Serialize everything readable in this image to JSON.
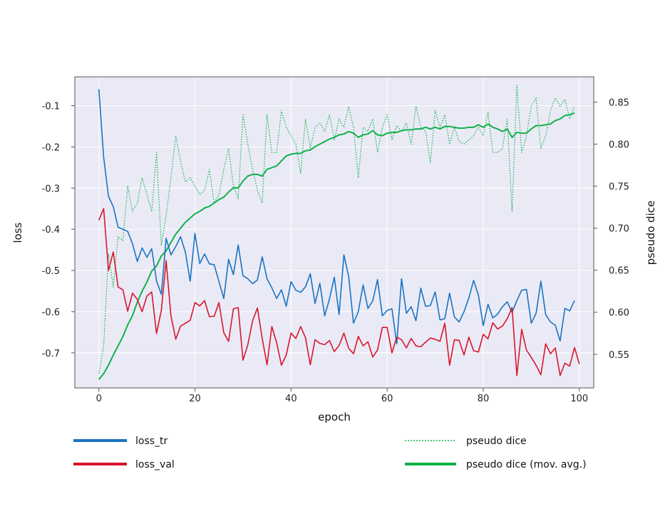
{
  "chart_data": {
    "type": "line",
    "title": "",
    "xlabel": "epoch",
    "ylabel": "loss",
    "y2label": "pseudo dice",
    "xlim": [
      -5,
      103
    ],
    "ylim": [
      -0.785,
      -0.03
    ],
    "y2lim": [
      0.51,
      0.88
    ],
    "xticks": [
      0,
      20,
      40,
      60,
      80,
      100
    ],
    "yticks": [
      -0.1,
      -0.2,
      -0.3,
      -0.4,
      -0.5,
      -0.6,
      -0.7
    ],
    "y2ticks": [
      0.55,
      0.6,
      0.65,
      0.7,
      0.75,
      0.8,
      0.85
    ],
    "grid": true,
    "legend_placement": "bottom",
    "colors": {
      "background": "#eaeaf6",
      "loss_tr": "#1a74c2",
      "loss_val": "#d8162b",
      "pseudo_dice": "#10b24a",
      "axes": "#555555",
      "grid": "#ffffff"
    },
    "series": [
      {
        "name": "loss_tr",
        "axis": "left",
        "style": "solid",
        "values": [
          -0.06,
          -0.225,
          -0.32,
          -0.345,
          -0.395,
          -0.4,
          -0.405,
          -0.435,
          -0.478,
          -0.445,
          -0.468,
          -0.447,
          -0.525,
          -0.558,
          -0.422,
          -0.462,
          -0.442,
          -0.418,
          -0.455,
          -0.526,
          -0.41,
          -0.483,
          -0.46,
          -0.484,
          -0.486,
          -0.527,
          -0.568,
          -0.473,
          -0.51,
          -0.438,
          -0.513,
          -0.52,
          -0.532,
          -0.523,
          -0.467,
          -0.52,
          -0.542,
          -0.568,
          -0.547,
          -0.587,
          -0.527,
          -0.548,
          -0.553,
          -0.54,
          -0.508,
          -0.58,
          -0.531,
          -0.61,
          -0.569,
          -0.516,
          -0.607,
          -0.462,
          -0.515,
          -0.628,
          -0.6,
          -0.535,
          -0.592,
          -0.574,
          -0.522,
          -0.61,
          -0.597,
          -0.593,
          -0.678,
          -0.52,
          -0.604,
          -0.588,
          -0.622,
          -0.543,
          -0.587,
          -0.585,
          -0.552,
          -0.62,
          -0.617,
          -0.555,
          -0.613,
          -0.625,
          -0.6,
          -0.567,
          -0.524,
          -0.56,
          -0.634,
          -0.582,
          -0.615,
          -0.606,
          -0.588,
          -0.576,
          -0.602,
          -0.573,
          -0.548,
          -0.546,
          -0.628,
          -0.604,
          -0.526,
          -0.607,
          -0.625,
          -0.633,
          -0.671,
          -0.592,
          -0.598,
          -0.573
        ]
      },
      {
        "name": "loss_val",
        "axis": "left",
        "style": "solid",
        "values": [
          -0.378,
          -0.35,
          -0.5,
          -0.455,
          -0.54,
          -0.547,
          -0.599,
          -0.555,
          -0.57,
          -0.6,
          -0.562,
          -0.552,
          -0.653,
          -0.597,
          -0.476,
          -0.61,
          -0.667,
          -0.635,
          -0.628,
          -0.621,
          -0.578,
          -0.586,
          -0.573,
          -0.612,
          -0.611,
          -0.578,
          -0.651,
          -0.672,
          -0.593,
          -0.59,
          -0.718,
          -0.68,
          -0.622,
          -0.591,
          -0.665,
          -0.729,
          -0.636,
          -0.675,
          -0.73,
          -0.705,
          -0.652,
          -0.665,
          -0.636,
          -0.663,
          -0.729,
          -0.668,
          -0.677,
          -0.68,
          -0.67,
          -0.697,
          -0.682,
          -0.652,
          -0.689,
          -0.702,
          -0.66,
          -0.683,
          -0.673,
          -0.71,
          -0.693,
          -0.638,
          -0.638,
          -0.7,
          -0.662,
          -0.668,
          -0.688,
          -0.665,
          -0.683,
          -0.685,
          -0.674,
          -0.664,
          -0.667,
          -0.672,
          -0.628,
          -0.73,
          -0.668,
          -0.67,
          -0.705,
          -0.662,
          -0.695,
          -0.698,
          -0.655,
          -0.666,
          -0.627,
          -0.642,
          -0.635,
          -0.617,
          -0.59,
          -0.755,
          -0.643,
          -0.693,
          -0.711,
          -0.73,
          -0.753,
          -0.678,
          -0.702,
          -0.688,
          -0.755,
          -0.725,
          -0.732,
          -0.687,
          -0.727
        ]
      },
      {
        "name": "pseudo dice",
        "axis": "right",
        "style": "dotted",
        "values": [
          0.527,
          0.56,
          0.67,
          0.63,
          0.69,
          0.685,
          0.75,
          0.72,
          0.73,
          0.76,
          0.74,
          0.72,
          0.79,
          0.68,
          0.715,
          0.76,
          0.81,
          0.78,
          0.755,
          0.76,
          0.75,
          0.74,
          0.745,
          0.77,
          0.73,
          0.74,
          0.77,
          0.795,
          0.75,
          0.735,
          0.835,
          0.8,
          0.77,
          0.745,
          0.73,
          0.835,
          0.79,
          0.79,
          0.84,
          0.82,
          0.81,
          0.8,
          0.765,
          0.83,
          0.795,
          0.82,
          0.825,
          0.815,
          0.835,
          0.805,
          0.83,
          0.82,
          0.845,
          0.82,
          0.76,
          0.82,
          0.815,
          0.83,
          0.79,
          0.82,
          0.835,
          0.805,
          0.822,
          0.815,
          0.825,
          0.8,
          0.845,
          0.82,
          0.815,
          0.778,
          0.84,
          0.82,
          0.835,
          0.8,
          0.82,
          0.803,
          0.8,
          0.805,
          0.81,
          0.82,
          0.81,
          0.838,
          0.79,
          0.79,
          0.795,
          0.83,
          0.72,
          0.87,
          0.79,
          0.81,
          0.845,
          0.855,
          0.795,
          0.81,
          0.84,
          0.855,
          0.845,
          0.853,
          0.83,
          0.845
        ]
      },
      {
        "name": "pseudo dice (mov. avg.)",
        "axis": "right",
        "style": "solid",
        "values": [
          0.52,
          0.527,
          0.537,
          0.549,
          0.56,
          0.571,
          0.585,
          0.596,
          0.612,
          0.625,
          0.636,
          0.649,
          0.655,
          0.667,
          0.673,
          0.683,
          0.693,
          0.7,
          0.707,
          0.712,
          0.717,
          0.72,
          0.724,
          0.726,
          0.73,
          0.734,
          0.737,
          0.743,
          0.748,
          0.748,
          0.756,
          0.762,
          0.764,
          0.764,
          0.762,
          0.77,
          0.772,
          0.774,
          0.78,
          0.786,
          0.788,
          0.789,
          0.789,
          0.792,
          0.793,
          0.797,
          0.8,
          0.803,
          0.806,
          0.808,
          0.811,
          0.812,
          0.815,
          0.813,
          0.808,
          0.811,
          0.812,
          0.816,
          0.811,
          0.81,
          0.813,
          0.814,
          0.814,
          0.816,
          0.817,
          0.817,
          0.818,
          0.818,
          0.82,
          0.818,
          0.82,
          0.818,
          0.821,
          0.821,
          0.82,
          0.819,
          0.819,
          0.82,
          0.82,
          0.823,
          0.82,
          0.824,
          0.82,
          0.818,
          0.815,
          0.818,
          0.808,
          0.814,
          0.813,
          0.813,
          0.818,
          0.822,
          0.822,
          0.823,
          0.824,
          0.828,
          0.83,
          0.834,
          0.835,
          0.837
        ]
      }
    ],
    "legend": [
      {
        "label": "loss_tr",
        "series": "loss_tr"
      },
      {
        "label": "loss_val",
        "series": "loss_val"
      },
      {
        "label": "pseudo dice",
        "series": "pseudo dice"
      },
      {
        "label": "pseudo dice (mov. avg.)",
        "series": "pseudo dice (mov. avg.)"
      }
    ]
  }
}
